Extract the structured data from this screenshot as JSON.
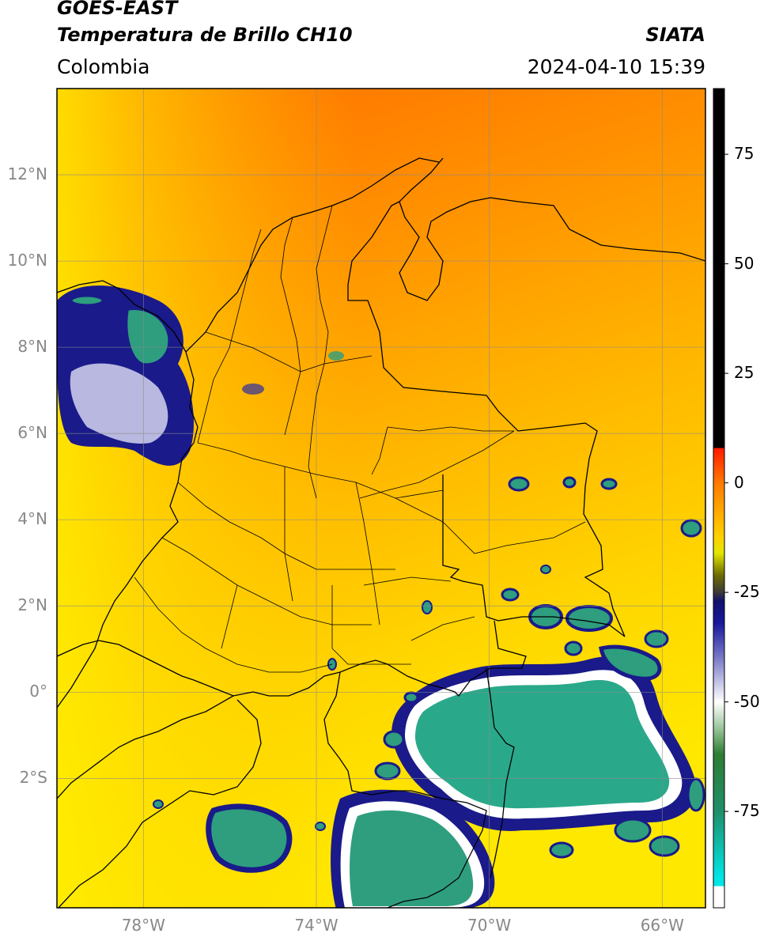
{
  "header": {
    "satellite": "GOES-EAST",
    "product": "Temperatura de Brillo CH10",
    "region": "Colombia",
    "organization": "SIATA",
    "datetime": "2024-04-10 15:39"
  },
  "axes": {
    "latitude_labels": [
      {
        "value": 12,
        "label": "12°N"
      },
      {
        "value": 10,
        "label": "10°N"
      },
      {
        "value": 8,
        "label": "8°N"
      },
      {
        "value": 6,
        "label": "6°N"
      },
      {
        "value": 4,
        "label": "4°N"
      },
      {
        "value": 2,
        "label": "2°N"
      },
      {
        "value": 0,
        "label": "0°"
      },
      {
        "value": -2,
        "label": "2°S"
      }
    ],
    "longitude_labels": [
      {
        "value": -78,
        "label": "78°W"
      },
      {
        "value": -74,
        "label": "74°W"
      },
      {
        "value": -70,
        "label": "70°W"
      },
      {
        "value": -66,
        "label": "66°W"
      }
    ],
    "lon_range": [
      -80.0,
      -65.0
    ],
    "lat_range": [
      -5.0,
      14.0
    ],
    "gridlines": true
  },
  "colorbar": {
    "ticks": [
      {
        "value": 75,
        "label": "75"
      },
      {
        "value": 50,
        "label": "50"
      },
      {
        "value": 25,
        "label": "25"
      },
      {
        "value": 0,
        "label": "0"
      },
      {
        "value": -25,
        "label": "-25"
      },
      {
        "value": -50,
        "label": "-50"
      },
      {
        "value": -75,
        "label": "-75"
      }
    ],
    "range": [
      -97,
      90
    ],
    "stops": [
      {
        "value": 90,
        "color": "#000000"
      },
      {
        "value": 8,
        "color": "#000000"
      },
      {
        "value": 7.9,
        "color": "#ff1a00"
      },
      {
        "value": 0,
        "color": "#ff7a00"
      },
      {
        "value": -12,
        "color": "#ffd000"
      },
      {
        "value": -16,
        "color": "#e4e600"
      },
      {
        "value": -21,
        "color": "#6e6e00"
      },
      {
        "value": -25,
        "color": "#3a3a3a"
      },
      {
        "value": -27,
        "color": "#10106e"
      },
      {
        "value": -32,
        "color": "#18189e"
      },
      {
        "value": -40,
        "color": "#7a7ac8"
      },
      {
        "value": -50,
        "color": "#ffffff"
      },
      {
        "value": -56,
        "color": "#9bc59b"
      },
      {
        "value": -62,
        "color": "#2e7d32"
      },
      {
        "value": -75,
        "color": "#1f8f6a"
      },
      {
        "value": -90,
        "color": "#00e5e5"
      },
      {
        "value": -92,
        "color": "#00e5e5"
      },
      {
        "value": -92.1,
        "color": "#ffffff"
      },
      {
        "value": -97,
        "color": "#ffffff"
      }
    ]
  },
  "colors": {
    "warm_background_north": "#ff7000",
    "warm_background_mid": "#ff9800",
    "warm_background_south": "#ffe000",
    "cold_cloud": "#2e9e7e",
    "cloud_edge": "#1a1a8a",
    "grid": "#8a8a8a"
  }
}
